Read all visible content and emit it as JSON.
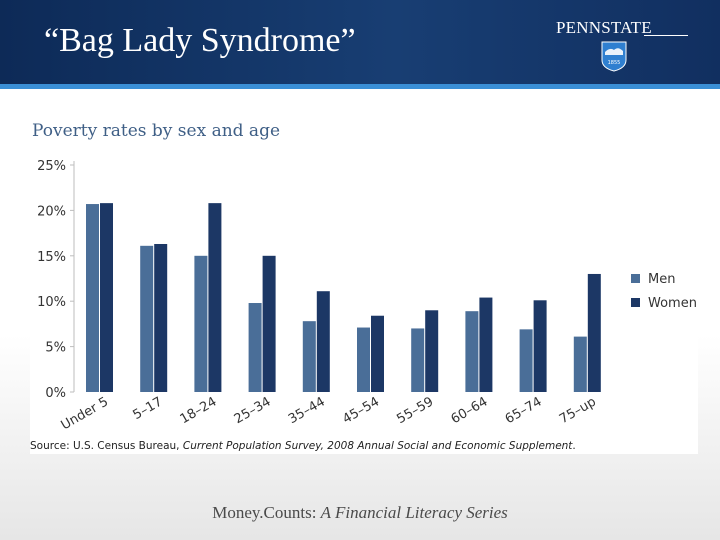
{
  "slide": {
    "title": "“Bag Lady Syndrome”",
    "logo_text": "PENNSTATE",
    "logo_year": "1855",
    "footer_brand": "Money.Counts: ",
    "footer_series": "A Financial Literacy Series"
  },
  "colors": {
    "header": "#15386b",
    "stripe": "#3a8fd6",
    "men": "#4a6e98",
    "women": "#1c3765",
    "title": "#3f5f86"
  },
  "chart_data": {
    "type": "bar",
    "title": "Poverty rates by sex and age",
    "categories": [
      "Under 5",
      "5–17",
      "18–24",
      "25–34",
      "35–44",
      "45–54",
      "55–59",
      "60–64",
      "65–74",
      "75–up"
    ],
    "series": [
      {
        "name": "Men",
        "values": [
          20.7,
          16.1,
          15.0,
          9.8,
          7.8,
          7.1,
          7.0,
          8.9,
          6.9,
          6.1
        ]
      },
      {
        "name": "Women",
        "values": [
          20.8,
          16.3,
          20.8,
          15.0,
          11.1,
          8.4,
          9.0,
          10.4,
          10.1,
          13.0
        ]
      }
    ],
    "ylim": [
      0,
      25
    ],
    "y_ticks": [
      0,
      5,
      10,
      15,
      20,
      25
    ],
    "y_tick_labels": [
      "0%",
      "5%",
      "10%",
      "15%",
      "20%",
      "25%"
    ],
    "grid": false,
    "legend_position": "right",
    "source_prefix": "Source: U.S. Census Bureau, ",
    "source_italic": "Current Population Survey, 2008 Annual Social and Economic Supplement",
    "source_suffix": "."
  }
}
